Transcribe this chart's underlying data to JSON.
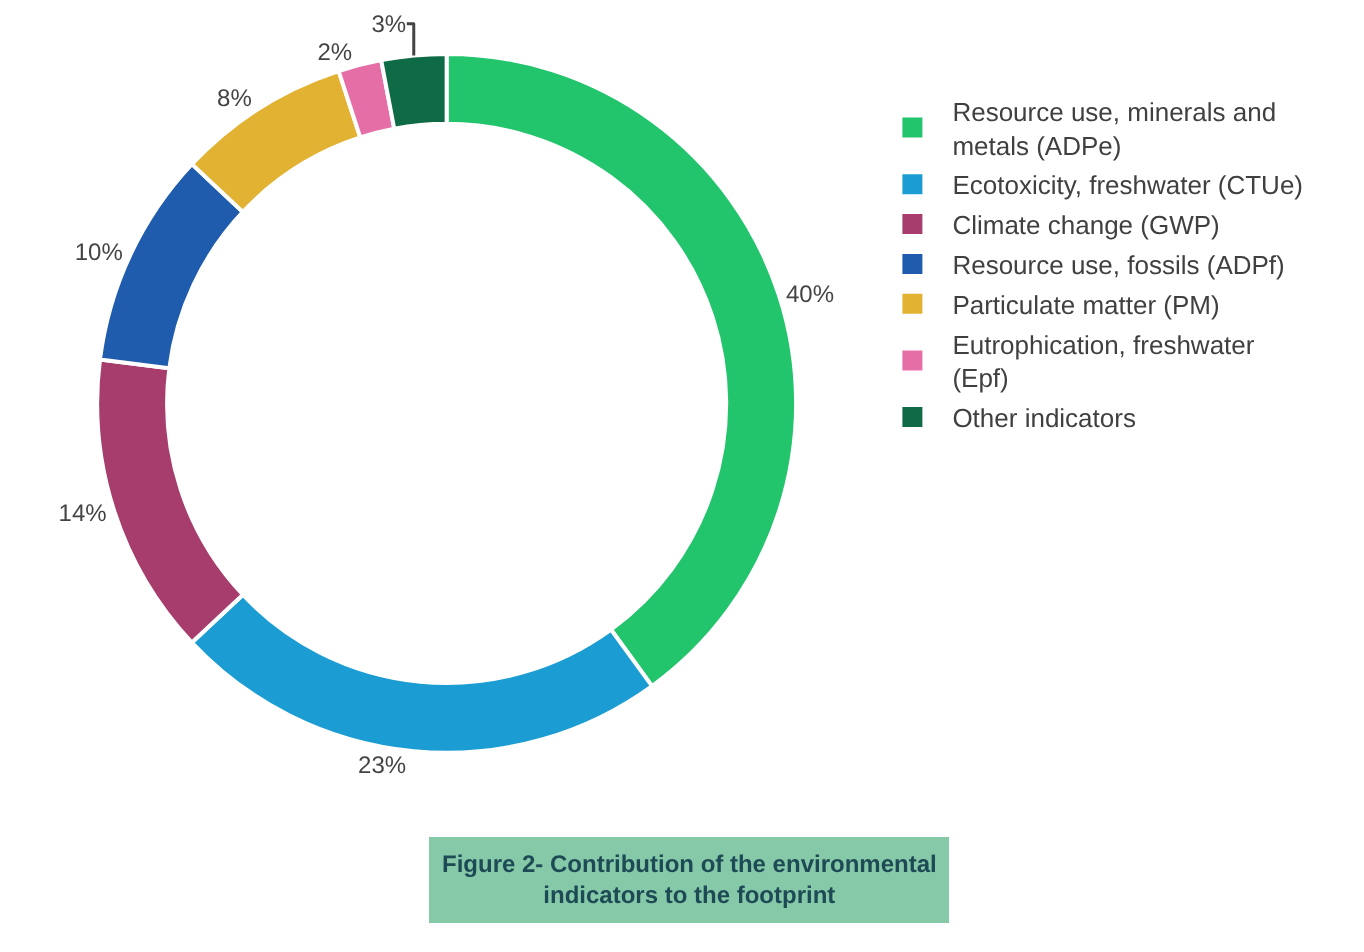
{
  "chart_data": {
    "type": "donut",
    "categories": [
      "Resource use, minerals and metals (ADPe)",
      "Ecotoxicity, freshwater (CTUe)",
      "Climate change (GWP)",
      "Resource use, fossils (ADPf)",
      "Particulate matter (PM)",
      "Eutrophication, freshwater (Epf)",
      "Other indicators"
    ],
    "values": [
      40,
      23,
      14,
      10,
      8,
      2,
      3
    ],
    "value_labels": [
      "40%",
      "23%",
      "14%",
      "10%",
      "8%",
      "2%",
      "3%"
    ],
    "colors": [
      "#22c46c",
      "#1b9dd3",
      "#a63d6c",
      "#1f5cad",
      "#e2b232",
      "#e66ea6",
      "#0f6b46"
    ],
    "legend": "right",
    "annotations": [
      "Figure 2- Contribution of the environmental indicators to the footprint"
    ]
  }
}
